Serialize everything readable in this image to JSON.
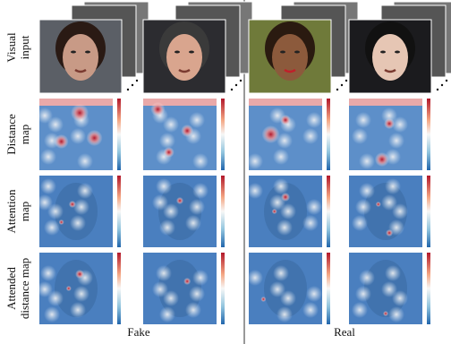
{
  "row_labels": [
    [
      "Visual",
      "input"
    ],
    [
      "Distance",
      "map"
    ],
    [
      "Attention",
      "map"
    ],
    [
      "Attended",
      "distance map"
    ]
  ],
  "column_labels": [
    "Fake",
    "Real"
  ]
}
